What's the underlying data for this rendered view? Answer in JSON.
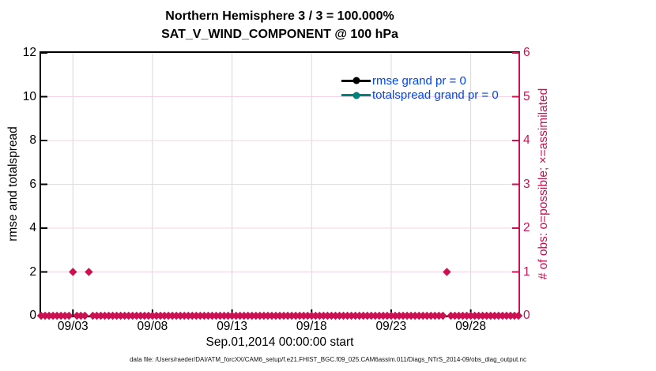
{
  "figure": {
    "footer": "data file: /Users/raeder/DAI/ATM_forcXX/CAM6_setup/f.e21.FHIST_BGC.f09_025.CAM6assim.011/Diags_NTrS_2014-09/obs_diag_output.nc"
  },
  "chart_data": {
    "type": "scatter",
    "title": "Northern Hemisphere 3 / 3 = 100.000%",
    "subtitle": "SAT_V_WIND_COMPONENT @ 100 hPa",
    "xlabel": "Sep.01,2014 00:00:00 start",
    "left_axis": {
      "label": "rmse and totalspread",
      "ticks": [
        0,
        2,
        4,
        6,
        8,
        10,
        12
      ],
      "range": [
        0,
        12
      ],
      "color": "#000000"
    },
    "right_axis": {
      "label": "# of obs: o=possible; ×=assimilated",
      "ticks": [
        0,
        1,
        2,
        3,
        4,
        5,
        6
      ],
      "range": [
        0,
        6
      ],
      "color": "#CC1153"
    },
    "x_axis": {
      "start": "Sep.01,2014 00:00:00",
      "range_days": [
        0,
        30
      ],
      "tick_days": [
        2,
        7,
        12,
        17,
        22,
        27
      ],
      "tick_labels": [
        "09/03",
        "09/08",
        "09/13",
        "09/18",
        "09/23",
        "09/28"
      ]
    },
    "grid": {
      "horizontal_color": "#F6D3E1",
      "vertical_color": "#DBD7DB"
    },
    "series": [
      {
        "name": "rmse grand pr = 0",
        "color": "#000000",
        "marker": "circle",
        "points": []
      },
      {
        "name": "totalspread grand pr = 0",
        "color": "#00837B",
        "marker": "circle",
        "points": []
      },
      {
        "name": "num_obs",
        "axis": "right",
        "color": "#CC1153",
        "marker": "diamond",
        "sample_interval_days": 0.25,
        "default_value": 0,
        "nonzero_points": [
          {
            "day": 2.0,
            "value": 1
          },
          {
            "day": 3.0,
            "value": 1
          },
          {
            "day": 25.5,
            "value": 1
          }
        ]
      }
    ],
    "legend": {
      "position": "top-right",
      "text_color": "#0045F0",
      "items": [
        {
          "label": "rmse grand pr = 0",
          "color": "#000000"
        },
        {
          "label": "totalspread grand pr = 0",
          "color": "#00837B"
        }
      ]
    }
  }
}
